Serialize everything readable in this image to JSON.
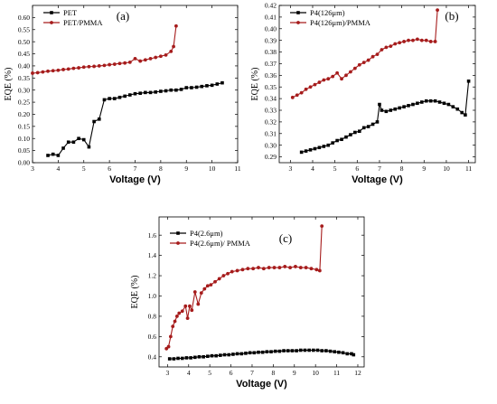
{
  "chart_data": [
    {
      "type": "line",
      "panel_label": "(a)",
      "xlabel": "Voltage (V)",
      "ylabel": "EQE (%)",
      "xlim": [
        3,
        11
      ],
      "ylim": [
        0.0,
        0.65
      ],
      "xticks": [
        3,
        4,
        5,
        6,
        7,
        8,
        9,
        10,
        11
      ],
      "yticks": [
        0.0,
        0.05,
        0.1,
        0.15,
        0.2,
        0.25,
        0.3,
        0.35,
        0.4,
        0.45,
        0.5,
        0.55,
        0.6
      ],
      "ytick_labels": [
        "0.00",
        "0.05",
        "0.10",
        "0.15",
        "0.20",
        "0.25",
        "0.30",
        "0.35",
        "0.40",
        "0.45",
        "0.50",
        "0.55",
        "0.60"
      ],
      "legend_position": "top-left",
      "series": [
        {
          "name": "PET",
          "color": "#000000",
          "marker": "square",
          "x": [
            3.6,
            3.8,
            4.0,
            4.2,
            4.4,
            4.6,
            4.8,
            5.0,
            5.2,
            5.4,
            5.6,
            5.8,
            6.0,
            6.2,
            6.4,
            6.6,
            6.8,
            7.0,
            7.2,
            7.4,
            7.6,
            7.8,
            8.0,
            8.2,
            8.4,
            8.6,
            8.8,
            9.0,
            9.2,
            9.4,
            9.6,
            9.8,
            10.0,
            10.2,
            10.4
          ],
          "y": [
            0.03,
            0.035,
            0.03,
            0.06,
            0.085,
            0.085,
            0.1,
            0.095,
            0.065,
            0.17,
            0.18,
            0.26,
            0.265,
            0.265,
            0.27,
            0.275,
            0.28,
            0.285,
            0.287,
            0.29,
            0.29,
            0.292,
            0.295,
            0.297,
            0.3,
            0.3,
            0.303,
            0.31,
            0.31,
            0.312,
            0.315,
            0.318,
            0.32,
            0.325,
            0.33
          ]
        },
        {
          "name": "PET/PMMA",
          "color": "#a61c1c",
          "marker": "circle",
          "x": [
            3.0,
            3.2,
            3.4,
            3.6,
            3.8,
            4.0,
            4.2,
            4.4,
            4.6,
            4.8,
            5.0,
            5.2,
            5.4,
            5.6,
            5.8,
            6.0,
            6.2,
            6.4,
            6.6,
            6.8,
            7.0,
            7.2,
            7.4,
            7.6,
            7.8,
            8.0,
            8.2,
            8.4,
            8.5,
            8.6
          ],
          "y": [
            0.37,
            0.372,
            0.375,
            0.378,
            0.38,
            0.382,
            0.385,
            0.387,
            0.39,
            0.392,
            0.395,
            0.397,
            0.398,
            0.4,
            0.402,
            0.405,
            0.407,
            0.41,
            0.412,
            0.415,
            0.43,
            0.42,
            0.425,
            0.43,
            0.435,
            0.44,
            0.445,
            0.46,
            0.48,
            0.565
          ]
        }
      ]
    },
    {
      "type": "line",
      "panel_label": "(b)",
      "xlabel": "Voltage (V)",
      "ylabel": "EQE (%)",
      "xlim": [
        2.5,
        11.3
      ],
      "ylim": [
        0.285,
        0.42
      ],
      "xticks": [
        3,
        4,
        5,
        6,
        7,
        8,
        9,
        10,
        11
      ],
      "yticks": [
        0.29,
        0.3,
        0.31,
        0.32,
        0.33,
        0.34,
        0.35,
        0.36,
        0.37,
        0.38,
        0.39,
        0.4,
        0.41,
        0.42
      ],
      "ytick_labels": [
        "0.29",
        "0.30",
        "0.31",
        "0.32",
        "0.33",
        "0.34",
        "0.35",
        "0.36",
        "0.37",
        "0.38",
        "0.39",
        "0.40",
        "0.41",
        "0.42"
      ],
      "legend_position": "top-left",
      "series": [
        {
          "name": "P4(126μm)",
          "color": "#000000",
          "marker": "square",
          "x": [
            3.5,
            3.7,
            3.9,
            4.1,
            4.3,
            4.5,
            4.7,
            4.9,
            5.1,
            5.3,
            5.5,
            5.7,
            5.9,
            6.1,
            6.3,
            6.5,
            6.7,
            6.9,
            7.0,
            7.1,
            7.3,
            7.5,
            7.7,
            7.9,
            8.1,
            8.3,
            8.5,
            8.7,
            8.9,
            9.1,
            9.3,
            9.5,
            9.7,
            9.9,
            10.1,
            10.3,
            10.5,
            10.7,
            10.85,
            11.0
          ],
          "y": [
            0.294,
            0.295,
            0.296,
            0.297,
            0.298,
            0.299,
            0.3,
            0.302,
            0.304,
            0.305,
            0.307,
            0.309,
            0.311,
            0.312,
            0.315,
            0.316,
            0.318,
            0.32,
            0.335,
            0.33,
            0.329,
            0.33,
            0.331,
            0.332,
            0.333,
            0.334,
            0.335,
            0.336,
            0.337,
            0.338,
            0.338,
            0.338,
            0.337,
            0.336,
            0.335,
            0.333,
            0.331,
            0.328,
            0.326,
            0.355
          ]
        },
        {
          "name": "P4(126μm)/PMMA",
          "color": "#a61c1c",
          "marker": "circle",
          "x": [
            3.1,
            3.3,
            3.5,
            3.7,
            3.9,
            4.1,
            4.3,
            4.5,
            4.7,
            4.9,
            5.1,
            5.3,
            5.5,
            5.7,
            5.9,
            6.1,
            6.3,
            6.5,
            6.7,
            6.9,
            7.1,
            7.3,
            7.5,
            7.7,
            7.9,
            8.1,
            8.3,
            8.5,
            8.7,
            8.9,
            9.1,
            9.3,
            9.5,
            9.6
          ],
          "y": [
            0.341,
            0.343,
            0.345,
            0.348,
            0.35,
            0.352,
            0.354,
            0.356,
            0.357,
            0.359,
            0.362,
            0.357,
            0.36,
            0.363,
            0.366,
            0.369,
            0.371,
            0.373,
            0.376,
            0.378,
            0.382,
            0.384,
            0.385,
            0.387,
            0.388,
            0.389,
            0.39,
            0.39,
            0.391,
            0.39,
            0.39,
            0.389,
            0.389,
            0.416
          ]
        }
      ]
    },
    {
      "type": "line",
      "panel_label": "(c)",
      "xlabel": "Voltage (V)",
      "ylabel": "EQE (%)",
      "xlim": [
        2.6,
        12.3
      ],
      "ylim": [
        0.3,
        1.78
      ],
      "xticks": [
        3,
        4,
        5,
        6,
        7,
        8,
        9,
        10,
        11,
        12
      ],
      "yticks": [
        0.4,
        0.6,
        0.8,
        1.0,
        1.2,
        1.4,
        1.6
      ],
      "ytick_labels": [
        "0.4",
        "0.6",
        "0.8",
        "1.0",
        "1.2",
        "1.4",
        "1.6"
      ],
      "legend_position": "top-left",
      "series": [
        {
          "name": "P4(2.6μm)",
          "color": "#000000",
          "marker": "square",
          "x": [
            3.1,
            3.3,
            3.5,
            3.7,
            3.9,
            4.1,
            4.3,
            4.5,
            4.7,
            4.9,
            5.1,
            5.3,
            5.5,
            5.7,
            5.9,
            6.1,
            6.3,
            6.5,
            6.7,
            6.9,
            7.1,
            7.3,
            7.5,
            7.7,
            7.9,
            8.1,
            8.3,
            8.5,
            8.7,
            8.9,
            9.1,
            9.3,
            9.5,
            9.7,
            9.9,
            10.1,
            10.3,
            10.5,
            10.7,
            10.9,
            11.1,
            11.3,
            11.5,
            11.7,
            11.8
          ],
          "y": [
            0.38,
            0.38,
            0.385,
            0.385,
            0.39,
            0.39,
            0.395,
            0.4,
            0.4,
            0.405,
            0.41,
            0.41,
            0.415,
            0.42,
            0.42,
            0.425,
            0.43,
            0.43,
            0.435,
            0.44,
            0.44,
            0.445,
            0.445,
            0.45,
            0.45,
            0.455,
            0.455,
            0.46,
            0.46,
            0.46,
            0.46,
            0.465,
            0.465,
            0.465,
            0.465,
            0.465,
            0.46,
            0.46,
            0.455,
            0.45,
            0.445,
            0.44,
            0.43,
            0.43,
            0.42
          ]
        },
        {
          "name": "P4(2.6μm)/ PMMA",
          "color": "#a61c1c",
          "marker": "circle",
          "x": [
            2.95,
            3.05,
            3.15,
            3.25,
            3.35,
            3.45,
            3.55,
            3.7,
            3.85,
            3.95,
            4.05,
            4.15,
            4.3,
            4.45,
            4.6,
            4.75,
            4.9,
            5.05,
            5.25,
            5.45,
            5.65,
            5.85,
            6.05,
            6.3,
            6.55,
            6.8,
            7.05,
            7.3,
            7.55,
            7.8,
            8.05,
            8.3,
            8.55,
            8.8,
            9.05,
            9.3,
            9.55,
            9.8,
            10.05,
            10.2,
            10.3
          ],
          "y": [
            0.48,
            0.5,
            0.6,
            0.7,
            0.75,
            0.8,
            0.83,
            0.85,
            0.9,
            0.78,
            0.9,
            0.86,
            1.04,
            0.92,
            1.03,
            1.07,
            1.1,
            1.11,
            1.14,
            1.17,
            1.2,
            1.22,
            1.24,
            1.25,
            1.26,
            1.27,
            1.27,
            1.28,
            1.27,
            1.28,
            1.28,
            1.28,
            1.29,
            1.28,
            1.29,
            1.28,
            1.28,
            1.27,
            1.26,
            1.25,
            1.69
          ]
        }
      ]
    }
  ]
}
